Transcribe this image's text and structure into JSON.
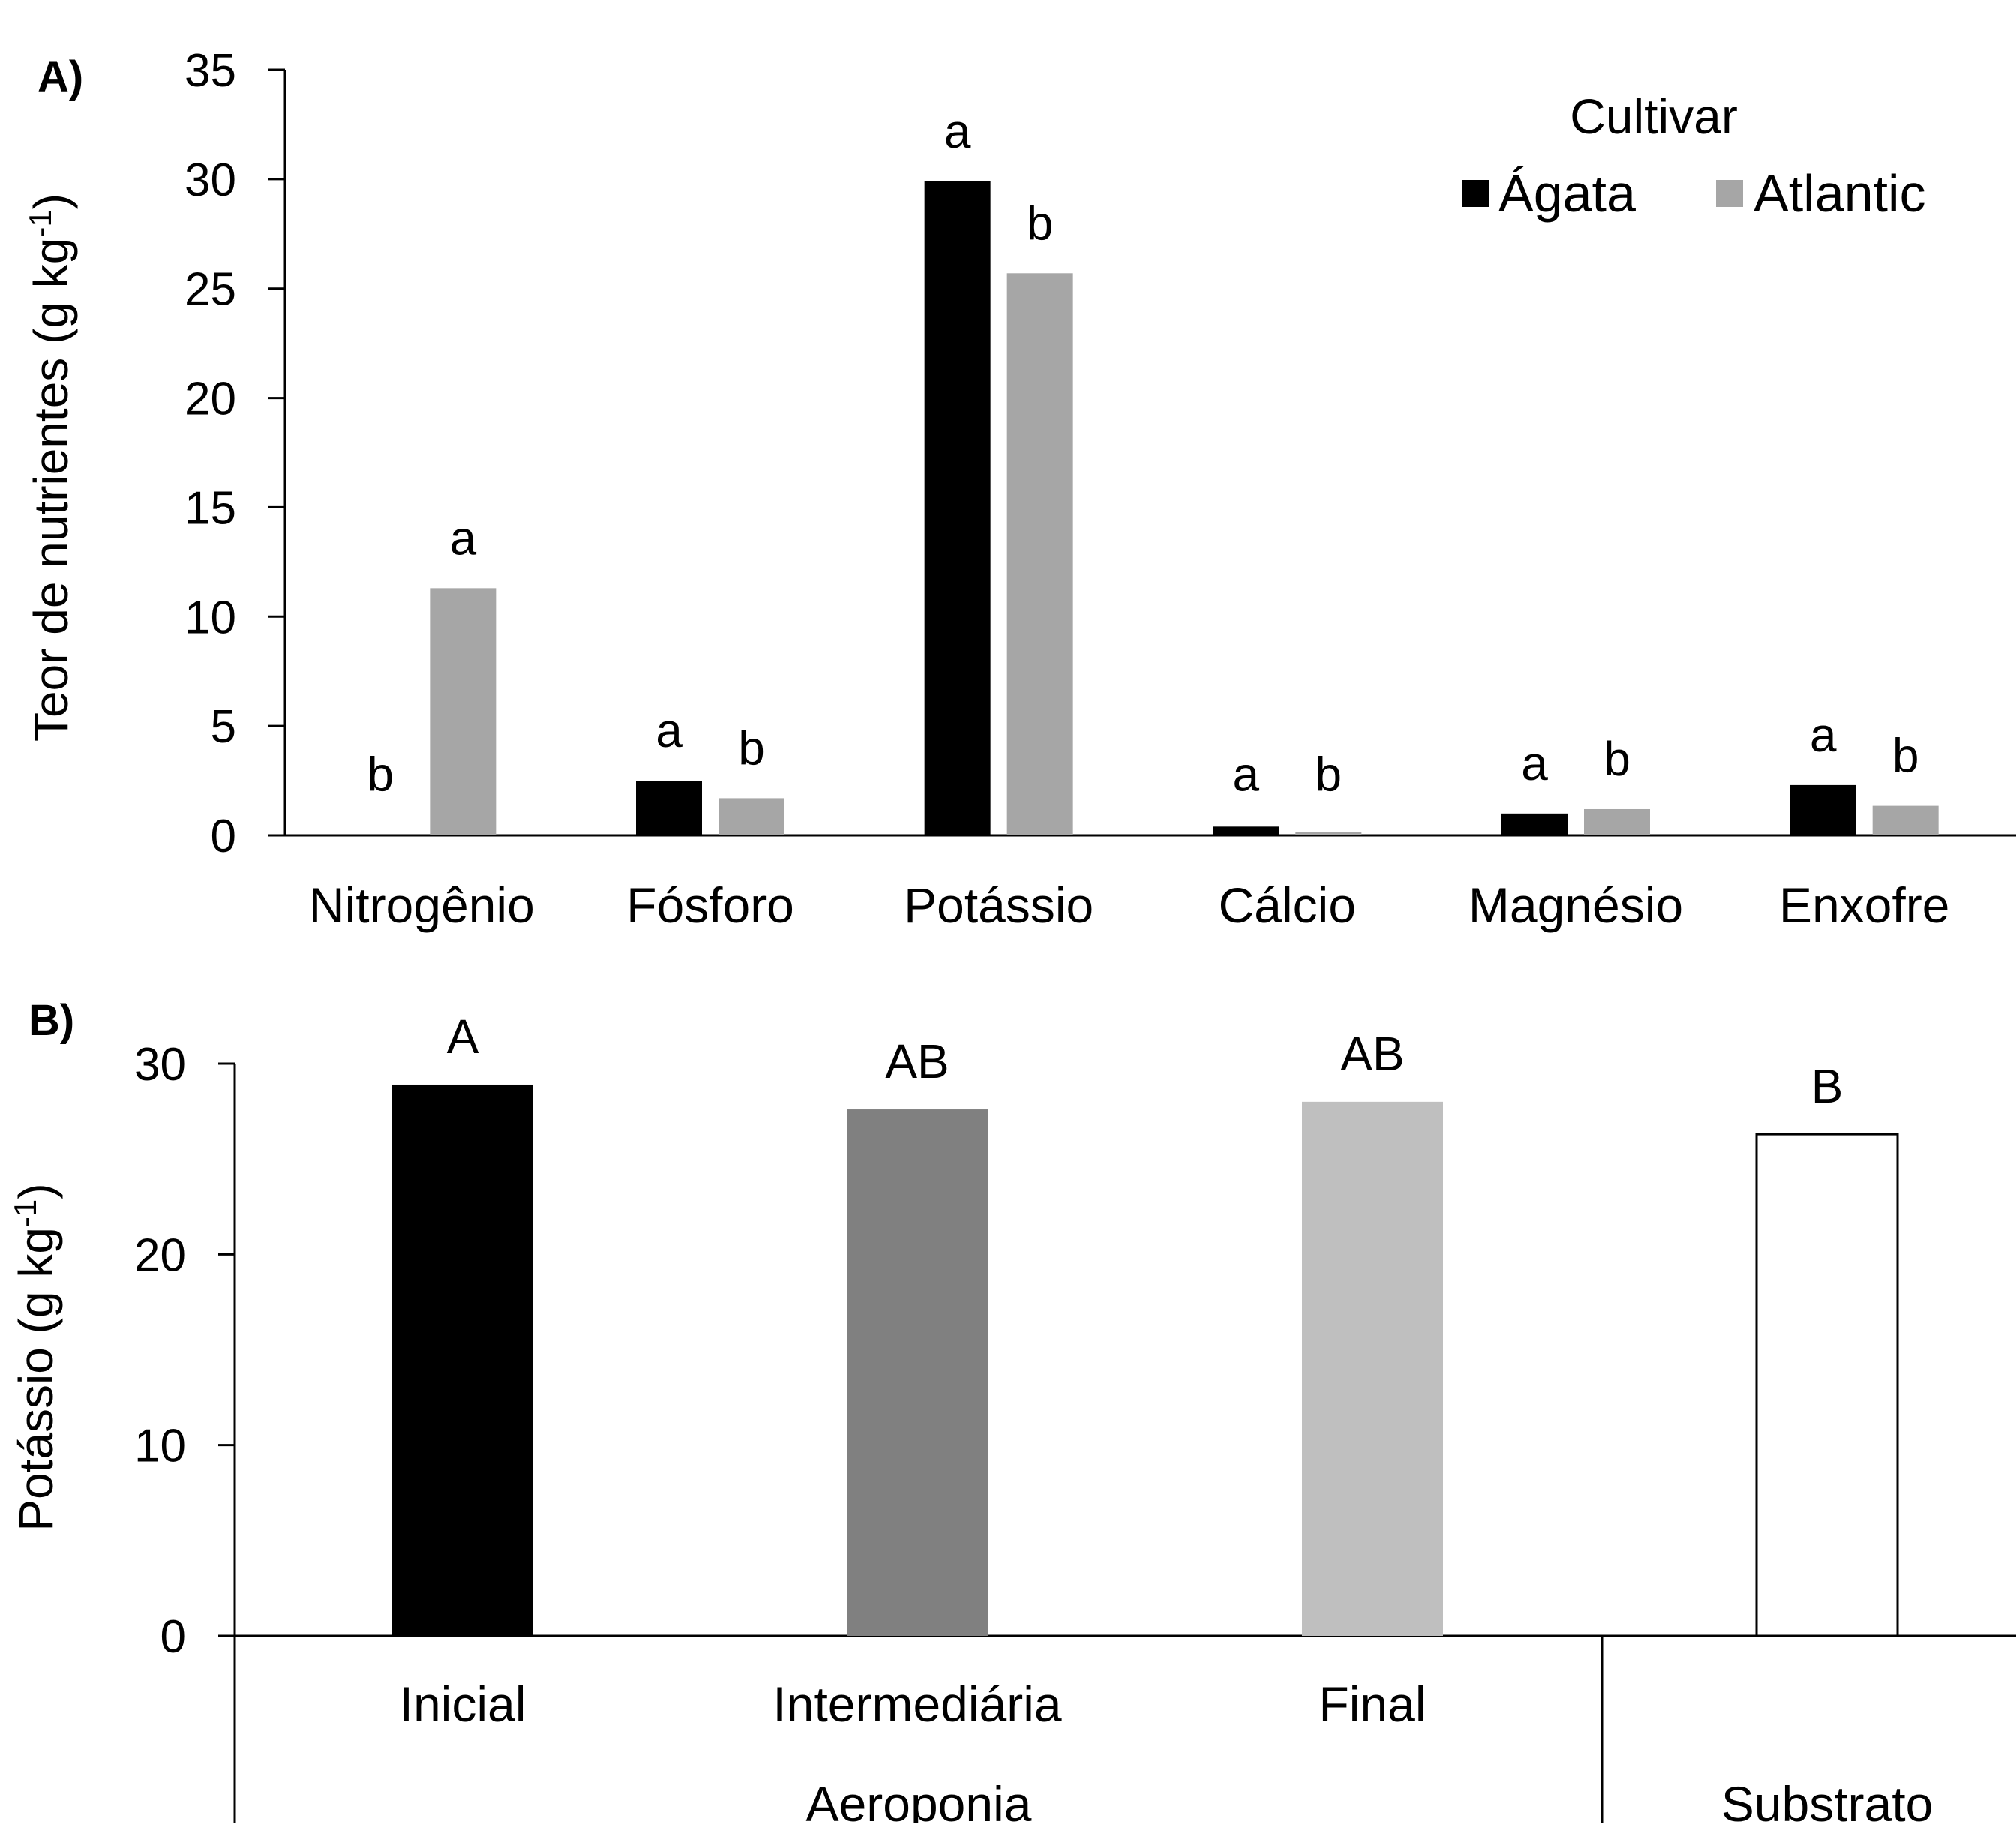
{
  "chart_data": [
    {
      "type": "bar",
      "panel_label": "A)",
      "ylabel": "Teor de nutrientes (g kg-1)",
      "ylabel_parts": {
        "main": "Teor de nutrientes (g kg",
        "sup": "-1",
        "close": ")"
      },
      "ylim": [
        0,
        35
      ],
      "yticks": [
        0,
        5,
        10,
        15,
        20,
        25,
        30,
        35
      ],
      "categories": [
        "Nitrogênio",
        "Fósforo",
        "Potássio",
        "Cálcio",
        "Magnésio",
        "Enxofre"
      ],
      "legend": {
        "title": "Cultivar",
        "position": "top-right"
      },
      "series": [
        {
          "name": "Ágata",
          "color": "#000000",
          "values": [
            0,
            2.5,
            29.9,
            0.4,
            1.0,
            2.3
          ],
          "labels": [
            "b",
            "a",
            "a",
            "a",
            "a",
            "a"
          ]
        },
        {
          "name": "Atlantic",
          "color": "#a6a6a6",
          "values": [
            11.3,
            1.7,
            25.7,
            0.15,
            1.2,
            1.35
          ],
          "labels": [
            "a",
            "b",
            "b",
            "b",
            "b",
            "b"
          ]
        }
      ],
      "grid": false
    },
    {
      "type": "bar",
      "panel_label": "B)",
      "ylabel": "Potássio (g kg-1)",
      "ylabel_parts": {
        "main": "Potássio (g kg",
        "sup": "-1",
        "close": ")"
      },
      "ylim": [
        0,
        30
      ],
      "yticks": [
        0,
        10,
        20,
        30
      ],
      "categories": [
        "Inicial",
        "Intermediária",
        "Final",
        ""
      ],
      "groups": [
        {
          "name": "Aeroponia",
          "categories": [
            "Inicial",
            "Intermediária",
            "Final"
          ]
        },
        {
          "name": "Substrato",
          "categories": [
            ""
          ]
        }
      ],
      "values": [
        28.9,
        27.6,
        28.0,
        26.3
      ],
      "labels": [
        "A",
        "AB",
        "AB",
        "B"
      ],
      "colors": [
        "#000000",
        "#808080",
        "#bfbfbf",
        "#ffffff"
      ],
      "grid": false
    }
  ]
}
